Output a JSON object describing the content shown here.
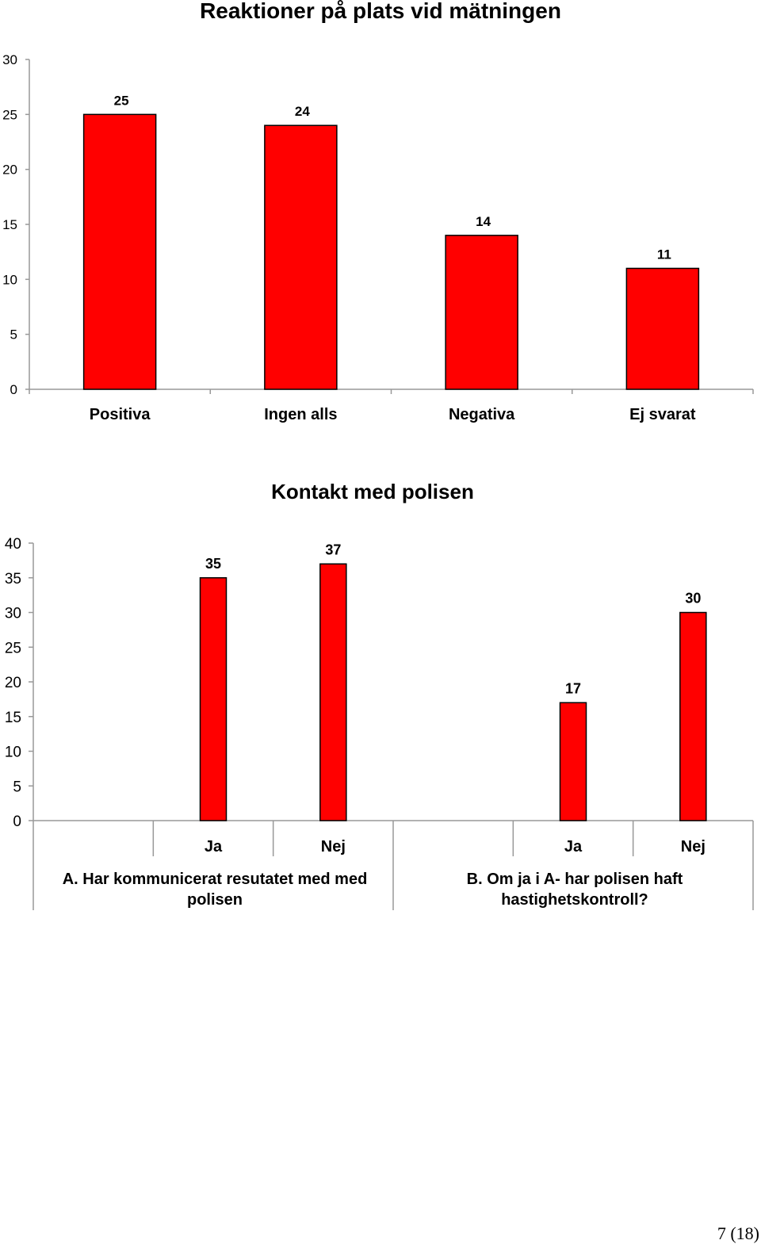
{
  "page": {
    "page_number": "7 (18)"
  },
  "chart_data": [
    {
      "type": "bar",
      "title": "Reaktioner på plats vid mätningen",
      "categories": [
        "Positiva",
        "Ingen alls",
        "Negativa",
        "Ej svarat"
      ],
      "values": [
        25,
        24,
        14,
        11
      ],
      "ylim": [
        0,
        30
      ],
      "yticks": [
        0,
        5,
        10,
        15,
        20,
        25,
        30
      ],
      "xlabel": "",
      "ylabel": "",
      "grid": false,
      "colors": {
        "bar": "#ff0000",
        "outline": "#000000"
      }
    },
    {
      "type": "bar",
      "title": "Kontakt med polisen",
      "groups": [
        {
          "label": "A. Har kommunicerat resutatet med med polisen",
          "label_lines": [
            "A. Har kommunicerat resutatet med med",
            "polisen"
          ],
          "categories": [
            "Ja",
            "Nej"
          ],
          "values": [
            35,
            37
          ]
        },
        {
          "label": "B. Om ja i A- har polisen haft hastighetskontroll?",
          "label_lines": [
            "B. Om ja i A- har polisen haft",
            "hastighetskontroll?"
          ],
          "categories": [
            "Ja",
            "Nej"
          ],
          "values": [
            17,
            30
          ]
        }
      ],
      "ylim": [
        0,
        40
      ],
      "yticks": [
        0,
        5,
        10,
        15,
        20,
        25,
        30,
        35,
        40
      ],
      "xlabel": "",
      "ylabel": "",
      "grid": false,
      "colors": {
        "bar": "#ff0000",
        "outline": "#000000"
      }
    }
  ]
}
